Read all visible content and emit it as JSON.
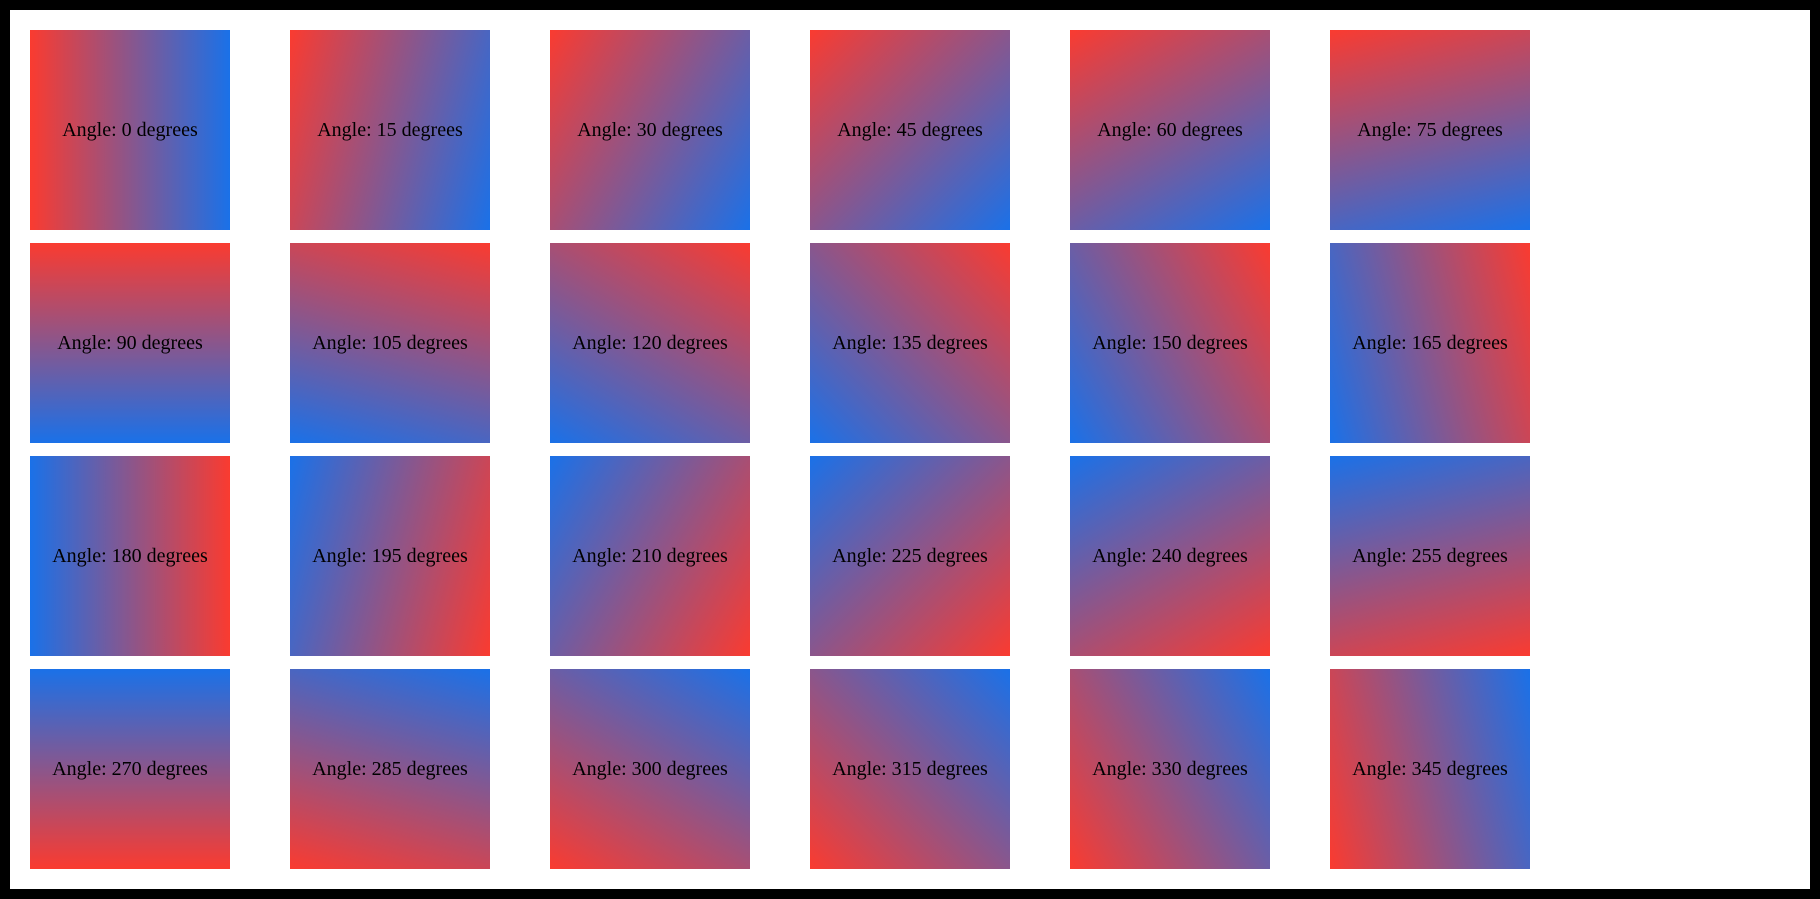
{
  "figure": {
    "background_color": "#ffffff",
    "frame_color": "#000000",
    "text_color": "#000000"
  },
  "gradient": {
    "start_color": "#FA3B30",
    "end_color": "#1A71E8",
    "start_name": "red",
    "end_name": "blue"
  },
  "tiles": [
    {
      "label": "Angle: 0 degrees",
      "angle_degrees": 0
    },
    {
      "label": "Angle: 15 degrees",
      "angle_degrees": 15
    },
    {
      "label": "Angle: 30 degrees",
      "angle_degrees": 30
    },
    {
      "label": "Angle: 45 degrees",
      "angle_degrees": 45
    },
    {
      "label": "Angle: 60 degrees",
      "angle_degrees": 60
    },
    {
      "label": "Angle: 75 degrees",
      "angle_degrees": 75
    },
    {
      "label": "Angle: 90 degrees",
      "angle_degrees": 90
    },
    {
      "label": "Angle: 105 degrees",
      "angle_degrees": 105
    },
    {
      "label": "Angle: 120 degrees",
      "angle_degrees": 120
    },
    {
      "label": "Angle: 135 degrees",
      "angle_degrees": 135
    },
    {
      "label": "Angle: 150 degrees",
      "angle_degrees": 150
    },
    {
      "label": "Angle: 165 degrees",
      "angle_degrees": 165
    },
    {
      "label": "Angle: 180 degrees",
      "angle_degrees": 180
    },
    {
      "label": "Angle: 195 degrees",
      "angle_degrees": 195
    },
    {
      "label": "Angle: 210 degrees",
      "angle_degrees": 210
    },
    {
      "label": "Angle: 225 degrees",
      "angle_degrees": 225
    },
    {
      "label": "Angle: 240 degrees",
      "angle_degrees": 240
    },
    {
      "label": "Angle: 255 degrees",
      "angle_degrees": 255
    },
    {
      "label": "Angle: 270 degrees",
      "angle_degrees": 270
    },
    {
      "label": "Angle: 285 degrees",
      "angle_degrees": 285
    },
    {
      "label": "Angle: 300 degrees",
      "angle_degrees": 300
    },
    {
      "label": "Angle: 315 degrees",
      "angle_degrees": 315
    },
    {
      "label": "Angle: 330 degrees",
      "angle_degrees": 330
    },
    {
      "label": "Angle: 345 degrees",
      "angle_degrees": 345
    }
  ]
}
